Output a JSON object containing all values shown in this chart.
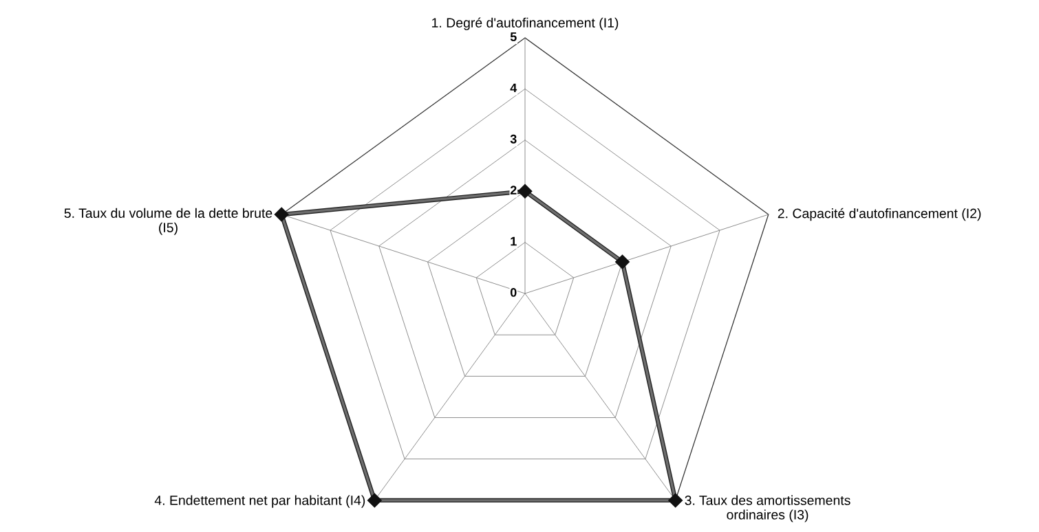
{
  "chart_data": {
    "type": "radar",
    "categories": [
      "1. Degré d'autofinancement (I1)",
      "2. Capacité d'autofinancement (I2)",
      "3. Taux des amortissements\nordinaires (I3)",
      "4. Endettement net par habitant (I4)",
      "5. Taux du volume de la dette brute\n(I5)"
    ],
    "series": [
      {
        "color": "#6e6e6e",
        "values": [
          2,
          2,
          5,
          5,
          5
        ]
      }
    ],
    "ylim": [
      0,
      5
    ],
    "yticks": [
      0,
      1,
      2,
      3,
      4,
      5
    ],
    "grid": true,
    "marker": "diamond"
  }
}
